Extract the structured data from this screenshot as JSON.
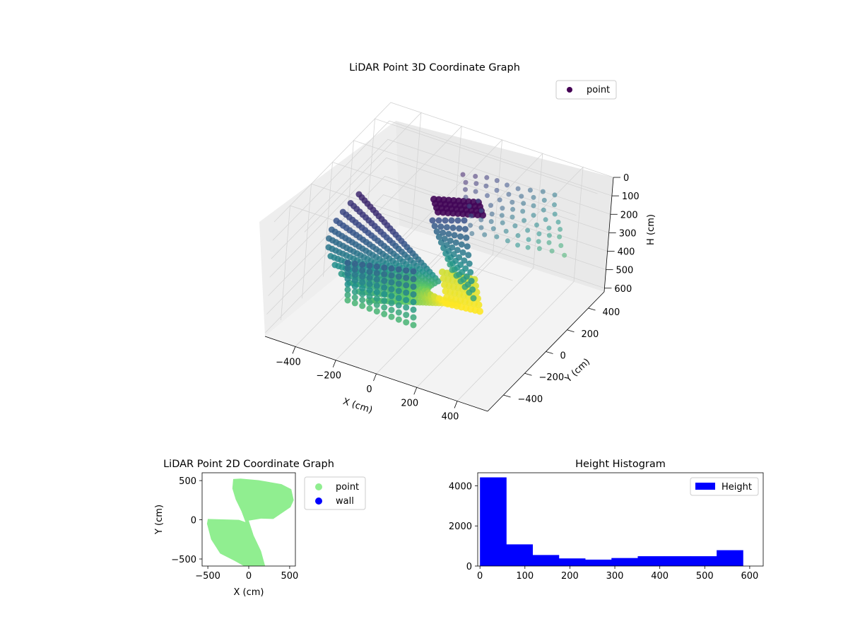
{
  "chart_data": [
    {
      "type": "scatter",
      "subtype": "3d",
      "title": "LiDAR Point 3D Coordinate Graph",
      "xlabel": "X (cm)",
      "ylabel": "Y (cm)",
      "zlabel": "H (cm)",
      "x_ticks": [
        "−400",
        "−200",
        "0",
        "200",
        "400"
      ],
      "y_ticks": [
        "−400",
        "−200",
        "0",
        "200",
        "400"
      ],
      "z_ticks": [
        "0",
        "100",
        "200",
        "300",
        "400",
        "500",
        "600"
      ],
      "xlim": [
        -550,
        550
      ],
      "ylim": [
        -550,
        550
      ],
      "zlim": [
        0,
        620
      ],
      "z_axis_inverted": true,
      "colormap": "viridis",
      "legend": {
        "entries": [
          "point"
        ],
        "placement": "upper-right"
      },
      "grid": true
    },
    {
      "type": "scatter",
      "title": "LiDAR Point 2D Coordinate Graph",
      "xlabel": "X (cm)",
      "ylabel": "Y (cm)",
      "x_ticks": [
        -500,
        0,
        500
      ],
      "y_ticks": [
        -500,
        0,
        500
      ],
      "xlim": [
        -570,
        570
      ],
      "ylim": [
        -590,
        600
      ],
      "series": [
        {
          "name": "point",
          "color": "#90ee90",
          "region_outline": [
            [
              -190,
              520
            ],
            [
              -100,
              525
            ],
            [
              120,
              505
            ],
            [
              400,
              455
            ],
            [
              520,
              390
            ],
            [
              550,
              250
            ],
            [
              510,
              160
            ],
            [
              300,
              10
            ],
            [
              150,
              15
            ],
            [
              0,
              -10
            ],
            [
              60,
              -200
            ],
            [
              150,
              -400
            ],
            [
              200,
              -590
            ],
            [
              -60,
              -590
            ],
            [
              -180,
              -520
            ],
            [
              -350,
              -430
            ],
            [
              -460,
              -250
            ],
            [
              -510,
              -50
            ],
            [
              -500,
              10
            ],
            [
              -120,
              0
            ],
            [
              -40,
              -30
            ],
            [
              -90,
              110
            ],
            [
              -160,
              260
            ],
            [
              -200,
              400
            ]
          ]
        },
        {
          "name": "wall",
          "color": "#0000ff",
          "points": []
        }
      ],
      "legend": {
        "entries": [
          "point",
          "wall"
        ],
        "placement": "outside-right"
      },
      "grid": false
    },
    {
      "type": "bar",
      "subtype": "histogram",
      "title": "Height Histogram",
      "xlabel": "",
      "ylabel": "",
      "bin_edges": [
        0,
        58.5,
        117,
        175.5,
        234,
        292.5,
        351,
        409.5,
        468,
        526.5,
        585
      ],
      "values": [
        4420,
        1080,
        550,
        380,
        320,
        400,
        490,
        490,
        490,
        790
      ],
      "x_ticks": [
        0,
        100,
        200,
        300,
        400,
        500,
        600
      ],
      "y_ticks": [
        0,
        2000,
        4000
      ],
      "xlim": [
        -5,
        630
      ],
      "ylim": [
        0,
        4650
      ],
      "color": "#0000ff",
      "legend": {
        "entries": [
          "Height"
        ],
        "placement": "top-right"
      },
      "grid": false
    }
  ]
}
